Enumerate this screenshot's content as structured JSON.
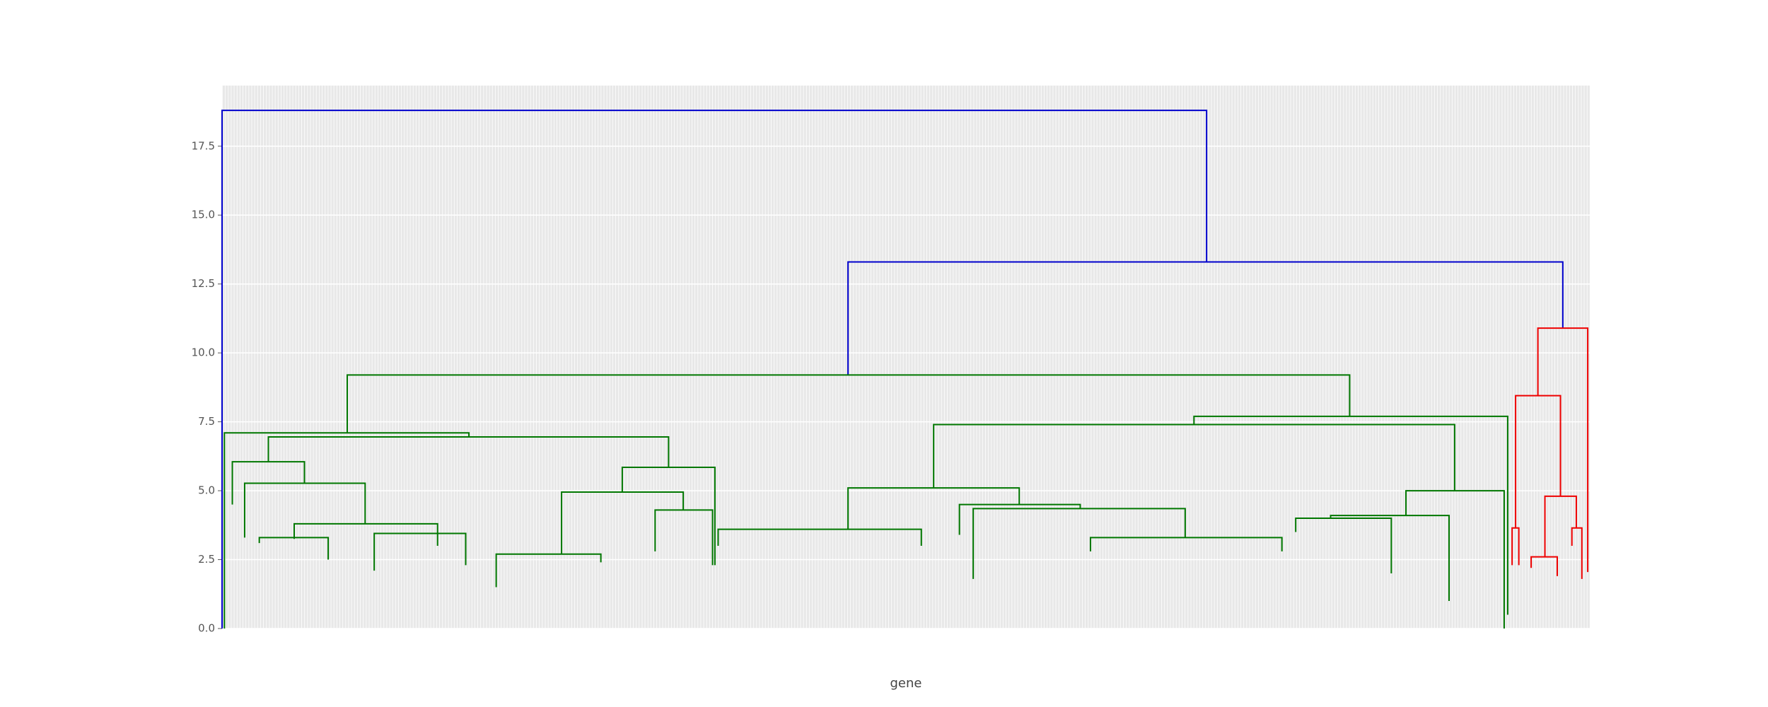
{
  "chart_data": {
    "type": "dendrogram",
    "x_label": "gene",
    "ylim": [
      0,
      19.7
    ],
    "xlim": [
      0,
      466.5
    ],
    "yticks": [
      {
        "value": 0,
        "label": "0.0"
      },
      2.5,
      {
        "value": 5,
        "label": "5.0"
      },
      7.5,
      {
        "value": 10,
        "label": "10.0"
      },
      12.5,
      {
        "value": 15,
        "label": "15.0"
      },
      17.5
    ],
    "grid": true,
    "icoord": [
      [
        0,
        0,
        335.8,
        335.8
      ],
      [
        213.5,
        213.5,
        457.3,
        457.3
      ],
      [
        42.7,
        42.7,
        384.6,
        384.6
      ],
      [
        448.8,
        448.8,
        465.8,
        465.8
      ],
      [
        0.8,
        0.8,
        84.2,
        84.2
      ],
      [
        15.8,
        15.8,
        152.3,
        152.3
      ],
      [
        3.5,
        3.5,
        28.1,
        28.1
      ],
      [
        7.7,
        7.7,
        48.8,
        48.8
      ],
      [
        24.6,
        24.6,
        73.5,
        73.5
      ],
      [
        12.7,
        12.7,
        36.2,
        36.2
      ],
      [
        51.9,
        51.9,
        83.1,
        83.1
      ],
      [
        136.5,
        136.5,
        168.1,
        168.1
      ],
      [
        115.8,
        115.8,
        157.3,
        157.3
      ],
      [
        93.5,
        93.5,
        129.2,
        129.2
      ],
      [
        147.7,
        147.7,
        167.3,
        167.3
      ],
      [
        331.5,
        331.5,
        438.5,
        438.5
      ],
      [
        242.7,
        242.7,
        420.4,
        420.4
      ],
      [
        213.5,
        213.5,
        271.9,
        271.9
      ],
      [
        169.2,
        169.2,
        238.5,
        238.5
      ],
      [
        251.5,
        251.5,
        292.7,
        292.7
      ],
      [
        256.2,
        256.2,
        328.5,
        328.5
      ],
      [
        296.2,
        296.2,
        361.5,
        361.5
      ],
      [
        403.8,
        403.8,
        437.3,
        437.3
      ],
      [
        378.1,
        378.1,
        418.5,
        418.5
      ],
      [
        366.2,
        366.2,
        398.8,
        398.8
      ],
      [
        441.2,
        441.2,
        456.5,
        456.5
      ],
      [
        440,
        440,
        442.3,
        442.3
      ],
      [
        451.2,
        451.2,
        461.9,
        461.9
      ],
      [
        446.5,
        446.5,
        455.4,
        455.4
      ],
      [
        460.4,
        460.4,
        463.8,
        463.8
      ]
    ],
    "dcoord": [
      [
        0,
        18.8,
        18.8,
        13.3
      ],
      [
        9.2,
        13.3,
        13.3,
        10.9
      ],
      [
        7.1,
        9.2,
        9.2,
        7.7
      ],
      [
        8.45,
        10.9,
        10.9,
        2.05
      ],
      [
        0,
        7.1,
        7.1,
        6.95
      ],
      [
        6.05,
        6.95,
        6.95,
        5.85
      ],
      [
        4.5,
        6.05,
        6.05,
        5.27
      ],
      [
        3.3,
        5.27,
        5.27,
        3.8
      ],
      [
        3.25,
        3.8,
        3.8,
        3.0
      ],
      [
        3.1,
        3.3,
        3.3,
        2.5
      ],
      [
        2.1,
        3.45,
        3.45,
        2.3
      ],
      [
        4.95,
        5.85,
        5.85,
        2.3
      ],
      [
        2.7,
        4.95,
        4.95,
        4.3
      ],
      [
        1.5,
        2.7,
        2.7,
        2.4
      ],
      [
        2.8,
        4.3,
        4.3,
        2.3
      ],
      [
        7.4,
        7.7,
        7.7,
        0.5
      ],
      [
        5.1,
        7.4,
        7.4,
        5.0
      ],
      [
        3.6,
        5.1,
        5.1,
        4.5
      ],
      [
        3.0,
        3.6,
        3.6,
        3.0
      ],
      [
        3.4,
        4.5,
        4.5,
        4.35
      ],
      [
        1.8,
        4.35,
        4.35,
        3.3
      ],
      [
        2.8,
        3.3,
        3.3,
        2.8
      ],
      [
        4.1,
        5.0,
        5.0,
        0
      ],
      [
        4.0,
        4.1,
        4.1,
        1.0
      ],
      [
        3.5,
        4.0,
        4.0,
        2.0
      ],
      [
        3.65,
        8.45,
        8.45,
        4.8
      ],
      [
        2.3,
        3.65,
        3.65,
        2.3
      ],
      [
        2.6,
        4.8,
        4.8,
        3.65
      ],
      [
        2.2,
        2.6,
        2.6,
        1.9
      ],
      [
        3.0,
        3.65,
        3.65,
        1.8
      ]
    ],
    "link_colors": [
      "#0000cc",
      "#0000cc",
      "#007700",
      "#ee0000",
      "#007700",
      "#007700",
      "#007700",
      "#007700",
      "#007700",
      "#007700",
      "#007700",
      "#007700",
      "#007700",
      "#007700",
      "#007700",
      "#007700",
      "#007700",
      "#007700",
      "#007700",
      "#007700",
      "#007700",
      "#007700",
      "#007700",
      "#007700",
      "#007700",
      "#ee0000",
      "#ee0000",
      "#ee0000",
      "#ee0000",
      "#ee0000"
    ]
  }
}
